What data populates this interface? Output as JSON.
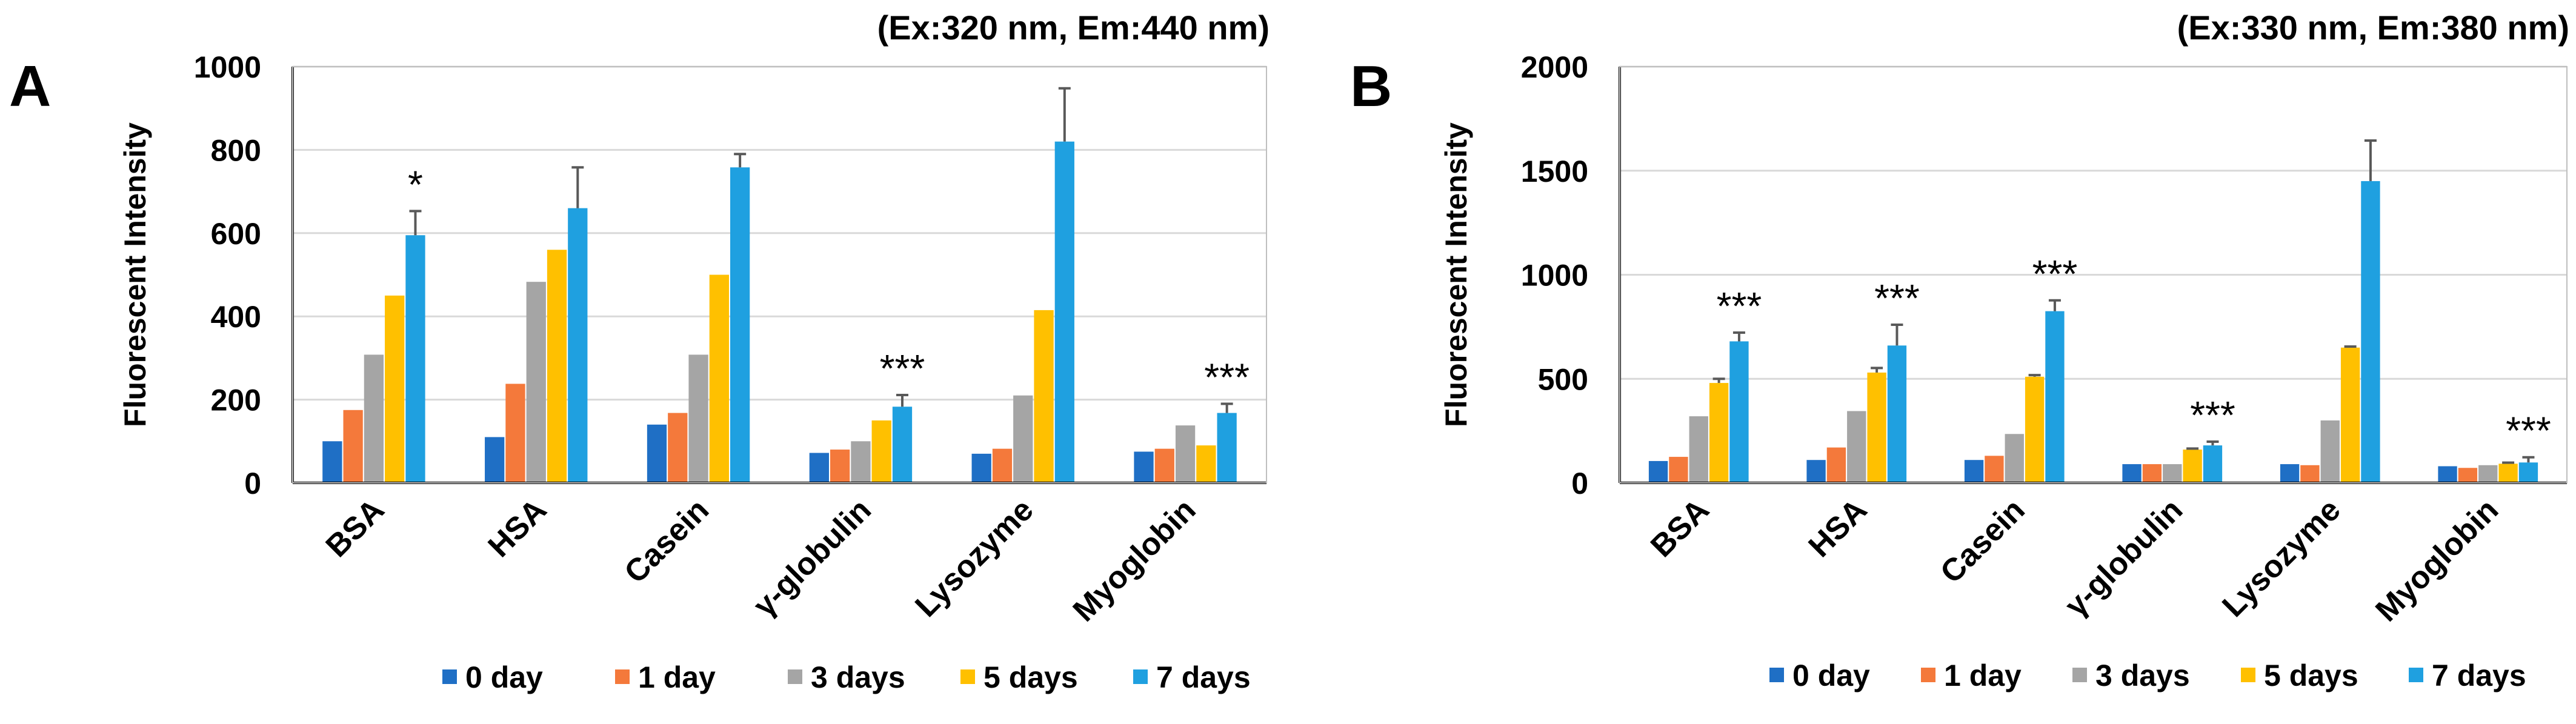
{
  "colors": {
    "series": [
      "#1f6fc5",
      "#f4793b",
      "#a5a5a5",
      "#ffc000",
      "#1fa0e0"
    ],
    "grid": "#d9d9d9",
    "axis": "#000000",
    "errorbar": "#595959"
  },
  "chart_data": [
    {
      "type": "bar",
      "panel_label": "A",
      "title": "(Ex:320 nm, Em:440 nm)",
      "ylabel": "Fluorescent Intensity",
      "xlabel": "",
      "ylim": [
        0,
        1000
      ],
      "yticks": [
        0,
        200,
        400,
        600,
        800,
        1000
      ],
      "grid": true,
      "legend": "bottom",
      "categories": [
        "BSA",
        "HSA",
        "Casein",
        "γ-globulin",
        "Lysozyme",
        "Myoglobin"
      ],
      "series": [
        {
          "name": "0 day",
          "values": [
            100,
            110,
            140,
            72,
            70,
            75
          ],
          "errors": [
            0,
            0,
            0,
            0,
            0,
            0
          ]
        },
        {
          "name": "1 day",
          "values": [
            175,
            238,
            168,
            80,
            82,
            82
          ],
          "errors": [
            0,
            0,
            0,
            0,
            0,
            0
          ]
        },
        {
          "name": "3 days",
          "values": [
            308,
            483,
            308,
            100,
            210,
            138
          ],
          "errors": [
            0,
            0,
            0,
            0,
            0,
            0
          ]
        },
        {
          "name": "5 days",
          "values": [
            450,
            560,
            500,
            150,
            415,
            90
          ],
          "errors": [
            0,
            0,
            0,
            0,
            0,
            0
          ]
        },
        {
          "name": "7 days",
          "values": [
            595,
            660,
            758,
            183,
            820,
            168
          ],
          "errors": [
            58,
            98,
            32,
            28,
            128,
            22
          ]
        }
      ],
      "annotations": [
        "*",
        "",
        "",
        "***",
        "",
        "***"
      ]
    },
    {
      "type": "bar",
      "panel_label": "B",
      "title": "(Ex:330 nm, Em:380 nm)",
      "ylabel": "Fluorescent Intensity",
      "xlabel": "",
      "ylim": [
        0,
        2000
      ],
      "yticks": [
        0,
        500,
        1000,
        1500,
        2000
      ],
      "grid": true,
      "legend": "bottom",
      "categories": [
        "BSA",
        "HSA",
        "Casein",
        "γ-globulin",
        "Lysozyme",
        "Myoglobin"
      ],
      "series": [
        {
          "name": "0 day",
          "values": [
            105,
            110,
            110,
            90,
            90,
            80
          ],
          "errors": [
            0,
            0,
            0,
            0,
            0,
            0
          ]
        },
        {
          "name": "1 day",
          "values": [
            125,
            170,
            130,
            90,
            85,
            72
          ],
          "errors": [
            0,
            0,
            0,
            0,
            0,
            0
          ]
        },
        {
          "name": "3 days",
          "values": [
            320,
            345,
            235,
            90,
            300,
            85
          ],
          "errors": [
            0,
            0,
            0,
            0,
            0,
            0
          ]
        },
        {
          "name": "5 days",
          "values": [
            480,
            530,
            510,
            160,
            650,
            92
          ],
          "errors": [
            20,
            22,
            8,
            5,
            5,
            5
          ]
        },
        {
          "name": "7 days",
          "values": [
            680,
            660,
            825,
            180,
            1450,
            98
          ],
          "errors": [
            42,
            100,
            52,
            18,
            195,
            25
          ]
        }
      ],
      "annotations": [
        "***",
        "***",
        "***",
        "***",
        "",
        "***"
      ]
    }
  ]
}
